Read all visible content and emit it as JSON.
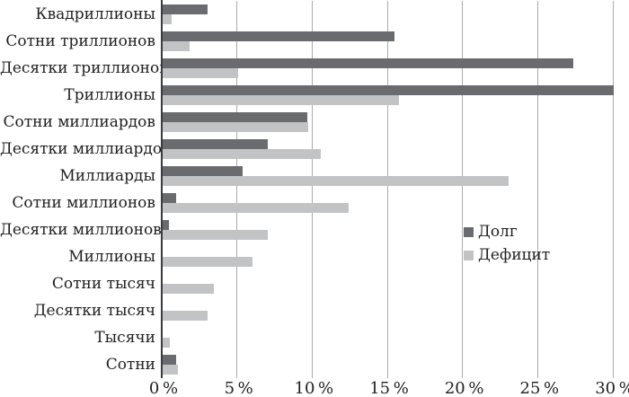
{
  "chart_data": {
    "type": "bar",
    "orientation": "horizontal",
    "categories": [
      "Квадриллионы",
      "Сотни триллионов",
      "Десятки триллионов",
      "Триллионы",
      "Сотни миллиардов",
      "Десятки миллиардов",
      "Миллиарды",
      "Сотни миллионов",
      "Десятки миллионов",
      "Миллионы",
      "Сотни тысяч",
      "Десятки тысяч",
      "Тысячи",
      "Сотни"
    ],
    "series": [
      {
        "name": "Долг",
        "color": "#6a6b6e",
        "values": [
          3.0,
          15.4,
          27.3,
          30.0,
          9.6,
          7.0,
          5.3,
          0.9,
          0.4,
          0,
          0,
          0,
          0,
          0.9
        ]
      },
      {
        "name": "Дефицит",
        "color": "#c2c3c5",
        "values": [
          0.6,
          1.8,
          5.0,
          15.7,
          9.7,
          10.5,
          23.0,
          12.4,
          7.0,
          6.0,
          3.4,
          3.0,
          0.5,
          1.0
        ]
      }
    ],
    "x_ticks": [
      "0 %",
      "5 %",
      "10 %",
      "15 %",
      "20 %",
      "25 %",
      "30 %"
    ],
    "xlim": [
      0,
      30
    ],
    "grid": "vertical",
    "legend_position": "middle-right",
    "xlabel": "",
    "ylabel": "",
    "title": ""
  },
  "legend": {
    "items": [
      {
        "label": "Долг",
        "color": "#6a6b6e"
      },
      {
        "label": "Дефицит",
        "color": "#c2c3c5"
      }
    ]
  },
  "colors": {
    "grid": "#ababad",
    "axis": "#3c3c3e",
    "text": "#1f1f1f",
    "background": "#ffffff"
  }
}
